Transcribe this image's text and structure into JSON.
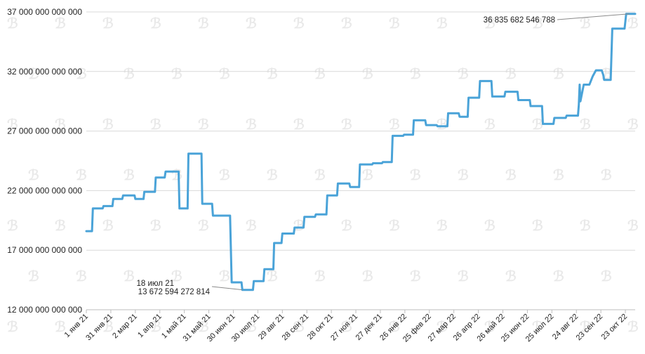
{
  "chart_data": {
    "type": "line",
    "title": "",
    "xlabel": "",
    "ylabel": "",
    "ylim": [
      12000000000000,
      37000000000000
    ],
    "y_ticks": [
      {
        "value": 12000000000000,
        "label": "12 000 000 000 000"
      },
      {
        "value": 17000000000000,
        "label": "17 000 000 000 000"
      },
      {
        "value": 22000000000000,
        "label": "22 000 000 000 000"
      },
      {
        "value": 27000000000000,
        "label": "27 000 000 000 000"
      },
      {
        "value": 32000000000000,
        "label": "32 000 000 000 000"
      },
      {
        "value": 37000000000000,
        "label": "37 000 000 000 000"
      }
    ],
    "x_range_days": [
      0,
      672
    ],
    "x_ticks": [
      {
        "day": 0,
        "label": "1 янв 21"
      },
      {
        "day": 30,
        "label": "31 янв 21"
      },
      {
        "day": 60,
        "label": "2 мар 21"
      },
      {
        "day": 90,
        "label": "1 апр 21"
      },
      {
        "day": 120,
        "label": "1 май 21"
      },
      {
        "day": 150,
        "label": "31 май 21"
      },
      {
        "day": 180,
        "label": "30 июн 21"
      },
      {
        "day": 210,
        "label": "30 июл 21"
      },
      {
        "day": 240,
        "label": "29 авг 21"
      },
      {
        "day": 270,
        "label": "28 сен 21"
      },
      {
        "day": 300,
        "label": "28 окт 21"
      },
      {
        "day": 330,
        "label": "27 ноя 21"
      },
      {
        "day": 360,
        "label": "27 дек 21"
      },
      {
        "day": 390,
        "label": "26 янв 22"
      },
      {
        "day": 420,
        "label": "25 фев 22"
      },
      {
        "day": 450,
        "label": "27 мар 22"
      },
      {
        "day": 480,
        "label": "26 апр 22"
      },
      {
        "day": 510,
        "label": "26 май 22"
      },
      {
        "day": 540,
        "label": "25 июн 22"
      },
      {
        "day": 570,
        "label": "25 июл 22"
      },
      {
        "day": 600,
        "label": "24 авг 22"
      },
      {
        "day": 630,
        "label": "23 сен 22"
      },
      {
        "day": 660,
        "label": "23 окт 22"
      }
    ],
    "series": [
      {
        "name": "value",
        "color": "#4aa3d8",
        "points": [
          [
            0,
            18.6
          ],
          [
            7,
            18.6
          ],
          [
            8,
            20.5
          ],
          [
            20,
            20.5
          ],
          [
            21,
            20.7
          ],
          [
            32,
            20.7
          ],
          [
            33,
            21.3
          ],
          [
            44,
            21.3
          ],
          [
            45,
            21.6
          ],
          [
            59,
            21.6
          ],
          [
            60,
            21.3
          ],
          [
            70,
            21.3
          ],
          [
            71,
            21.9
          ],
          [
            84,
            21.9
          ],
          [
            85,
            23.1
          ],
          [
            96,
            23.1
          ],
          [
            97,
            23.6
          ],
          [
            113,
            23.6
          ],
          [
            114,
            20.5
          ],
          [
            124,
            20.5
          ],
          [
            125,
            25.1
          ],
          [
            141,
            25.1
          ],
          [
            142,
            20.9
          ],
          [
            154,
            20.9
          ],
          [
            155,
            19.9
          ],
          [
            176,
            19.9
          ],
          [
            178,
            14.3
          ],
          [
            190,
            14.3
          ],
          [
            191,
            13.67
          ],
          [
            204,
            13.67
          ],
          [
            205,
            14.4
          ],
          [
            217,
            14.4
          ],
          [
            218,
            15.4
          ],
          [
            229,
            15.4
          ],
          [
            230,
            17.6
          ],
          [
            239,
            17.6
          ],
          [
            240,
            18.4
          ],
          [
            254,
            18.4
          ],
          [
            255,
            18.9
          ],
          [
            266,
            18.9
          ],
          [
            267,
            19.8
          ],
          [
            280,
            19.8
          ],
          [
            281,
            20.0
          ],
          [
            294,
            20.0
          ],
          [
            295,
            21.6
          ],
          [
            307,
            21.6
          ],
          [
            308,
            22.6
          ],
          [
            322,
            22.6
          ],
          [
            323,
            22.3
          ],
          [
            334,
            22.3
          ],
          [
            335,
            24.2
          ],
          [
            350,
            24.2
          ],
          [
            351,
            24.3
          ],
          [
            362,
            24.3
          ],
          [
            363,
            24.4
          ],
          [
            374,
            24.4
          ],
          [
            375,
            26.6
          ],
          [
            388,
            26.6
          ],
          [
            389,
            26.7
          ],
          [
            400,
            26.7
          ],
          [
            401,
            27.9
          ],
          [
            415,
            27.9
          ],
          [
            416,
            27.5
          ],
          [
            429,
            27.5
          ],
          [
            430,
            27.4
          ],
          [
            442,
            27.4
          ],
          [
            443,
            28.5
          ],
          [
            456,
            28.5
          ],
          [
            457,
            28.2
          ],
          [
            467,
            28.2
          ],
          [
            468,
            29.8
          ],
          [
            481,
            29.8
          ],
          [
            482,
            31.2
          ],
          [
            496,
            31.2
          ],
          [
            497,
            29.9
          ],
          [
            512,
            29.9
          ],
          [
            513,
            30.3
          ],
          [
            528,
            30.3
          ],
          [
            529,
            29.6
          ],
          [
            543,
            29.6
          ],
          [
            544,
            29.1
          ],
          [
            558,
            29.1
          ],
          [
            559,
            27.6
          ],
          [
            572,
            27.6
          ],
          [
            573,
            28.1
          ],
          [
            587,
            28.1
          ],
          [
            588,
            28.3
          ],
          [
            602,
            28.3
          ],
          [
            603,
            29.2
          ],
          [
            604,
            30.9
          ],
          [
            605,
            29.5
          ],
          [
            609,
            30.9
          ],
          [
            616,
            30.9
          ],
          [
            620,
            31.6
          ],
          [
            624,
            32.1
          ],
          [
            631,
            32.1
          ],
          [
            633,
            31.7
          ],
          [
            634,
            31.3
          ],
          [
            642,
            31.3
          ],
          [
            644,
            35.6
          ],
          [
            659,
            35.6
          ],
          [
            661,
            36.84
          ],
          [
            672,
            36.84
          ]
        ]
      }
    ],
    "annotations": [
      {
        "day": 191,
        "value": 13.67,
        "label_lines": [
          "18 июл 21",
          "13 672 594 272 814"
        ]
      },
      {
        "day": 665,
        "value": 36.84,
        "label_lines": [
          "36 835 682 546 788"
        ]
      }
    ],
    "grid": true,
    "legend": "none",
    "watermark_glyph": "ℬ"
  }
}
